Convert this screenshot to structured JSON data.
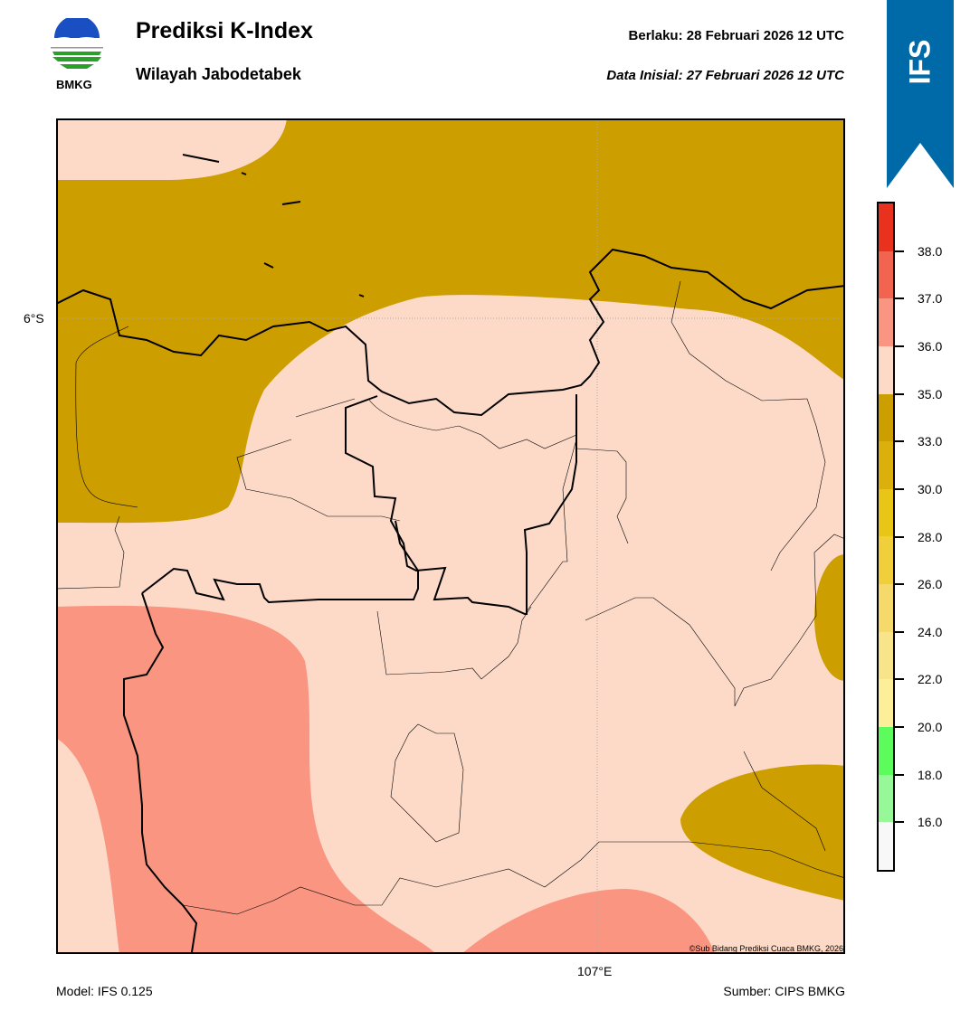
{
  "header": {
    "title": "Prediksi K-Index",
    "subtitle": "Wilayah Jabodetabek",
    "valid": "Berlaku:  28 Februari 2026 12 UTC",
    "initial": "Data Inisial:  27 Februari 2026 12 UTC",
    "logo_text": "BMKG",
    "model_badge": "IFS"
  },
  "map": {
    "lat_label": "6°S",
    "lon_label": "107°E",
    "copyright": "©Sub Bidang Prediksi Cuaca BMKG, 2026",
    "colors": {
      "background": "#fddac8",
      "olive": "#cc9e00",
      "salmon": "#f99580",
      "badge": "#0069a8"
    }
  },
  "colorbar": {
    "ticks": [
      "38.0",
      "37.0",
      "36.0",
      "35.0",
      "33.0",
      "30.0",
      "28.0",
      "26.0",
      "24.0",
      "22.0",
      "20.0",
      "18.0",
      "16.0"
    ],
    "colors": [
      "#e8321e",
      "#f26450",
      "#f99580",
      "#fddac8",
      "#cc9e00",
      "#dcb00c",
      "#e8c516",
      "#f0cf3a",
      "#f5d96a",
      "#f8e48a",
      "#fdef9a",
      "#5cfc5c",
      "#96f896",
      "#f8f8f8"
    ]
  },
  "footer": {
    "model": "Model: IFS 0.125",
    "source": "Sumber: CIPS BMKG"
  }
}
